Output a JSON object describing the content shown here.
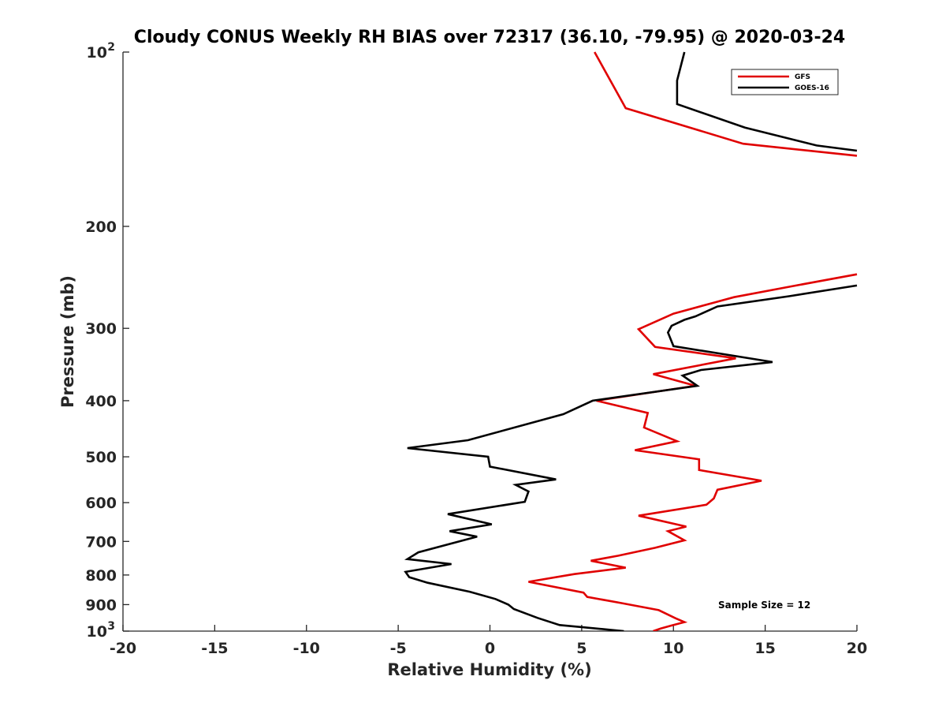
{
  "chart_data": {
    "type": "line",
    "title": "Cloudy CONUS Weekly RH BIAS over 72317 (36.10, -79.95) @ 2020-03-24",
    "xlabel": "Relative Humidity (%)",
    "ylabel": "Pressure (mb)",
    "xlim": [
      -20,
      20
    ],
    "ylim": [
      100,
      1000
    ],
    "y_scale": "log",
    "y_reversed": true,
    "x_ticks": [
      "-20",
      "-15",
      "-10",
      "-5",
      "0",
      "5",
      "10",
      "15",
      "20"
    ],
    "y_ticks": [
      {
        "value": 100,
        "base": "10",
        "exp": "2"
      },
      {
        "value": 200,
        "label": "200"
      },
      {
        "value": 300,
        "label": "300"
      },
      {
        "value": 400,
        "label": "400"
      },
      {
        "value": 500,
        "label": "500"
      },
      {
        "value": 600,
        "label": "600"
      },
      {
        "value": 700,
        "label": "700"
      },
      {
        "value": 800,
        "label": "800"
      },
      {
        "value": 900,
        "label": "900"
      },
      {
        "value": 1000,
        "base": "10",
        "exp": "3"
      }
    ],
    "grid": false,
    "legend_position": "top-right",
    "annotation": "Sample Size = 12",
    "series": [
      {
        "name": "GFS",
        "color": "#e00000",
        "segments": [
          [
            [
              5.7,
              100
            ],
            [
              7.4,
              125
            ],
            [
              13.8,
              144
            ],
            [
              20.0,
              151
            ]
          ],
          [
            [
              20.0,
              242
            ],
            [
              16.4,
              254
            ],
            [
              13.3,
              265
            ],
            [
              10.0,
              283
            ],
            [
              8.1,
              301
            ],
            [
              9.0,
              323
            ],
            [
              13.4,
              338
            ],
            [
              8.9,
              360
            ],
            [
              11.2,
              377
            ],
            [
              5.8,
              400
            ],
            [
              8.6,
              420
            ],
            [
              8.4,
              445
            ],
            [
              10.2,
              470
            ],
            [
              7.9,
              487
            ],
            [
              11.4,
              505
            ],
            [
              11.4,
              527
            ],
            [
              14.8,
              550
            ],
            [
              12.4,
              570
            ],
            [
              12.2,
              590
            ],
            [
              11.8,
              605
            ],
            [
              8.1,
              632
            ],
            [
              10.7,
              660
            ],
            [
              9.7,
              672
            ],
            [
              10.6,
              697
            ],
            [
              9.0,
              718
            ],
            [
              7.0,
              741
            ],
            [
              5.5,
              756
            ],
            [
              7.4,
              777
            ],
            [
              4.6,
              797
            ],
            [
              2.1,
              822
            ],
            [
              5.1,
              858
            ],
            [
              5.3,
              873
            ],
            [
              7.2,
              895
            ],
            [
              9.2,
              920
            ],
            [
              10.1,
              950
            ],
            [
              10.6,
              965
            ],
            [
              9.9,
              978
            ],
            [
              9.3,
              990
            ],
            [
              8.9,
              1000
            ]
          ]
        ]
      },
      {
        "name": "GOES-16",
        "color": "#000000",
        "segments": [
          [
            [
              10.6,
              100
            ],
            [
              10.2,
              112
            ],
            [
              10.2,
              123
            ],
            [
              13.9,
              135
            ],
            [
              17.8,
              145
            ],
            [
              20.0,
              148
            ]
          ],
          [
            [
              20.0,
              253
            ],
            [
              16.3,
              264
            ],
            [
              12.4,
              275
            ],
            [
              11.2,
              286
            ],
            [
              10.6,
              290
            ],
            [
              9.9,
              297
            ],
            [
              9.7,
              305
            ],
            [
              10.0,
              322
            ],
            [
              15.4,
              343
            ],
            [
              11.5,
              354
            ],
            [
              10.5,
              362
            ],
            [
              11.3,
              377
            ],
            [
              5.6,
              400
            ],
            [
              4.0,
              422
            ],
            [
              -1.2,
              468
            ],
            [
              -4.5,
              483
            ],
            [
              -0.1,
              500
            ],
            [
              0.0,
              520
            ],
            [
              3.6,
              547
            ],
            [
              1.4,
              559
            ],
            [
              2.1,
              574
            ],
            [
              1.9,
              598
            ],
            [
              -2.3,
              628
            ],
            [
              0.1,
              654
            ],
            [
              -2.2,
              672
            ],
            [
              -0.7,
              687
            ],
            [
              -3.9,
              731
            ],
            [
              -4.5,
              751
            ],
            [
              -2.1,
              766
            ],
            [
              -4.6,
              790
            ],
            [
              -4.4,
              807
            ],
            [
              -3.4,
              825
            ],
            [
              -1.1,
              855
            ],
            [
              0.3,
              880
            ],
            [
              1.0,
              900
            ],
            [
              1.3,
              916
            ],
            [
              2.6,
              949
            ],
            [
              3.8,
              976
            ],
            [
              7.3,
              1000
            ]
          ]
        ]
      }
    ]
  }
}
